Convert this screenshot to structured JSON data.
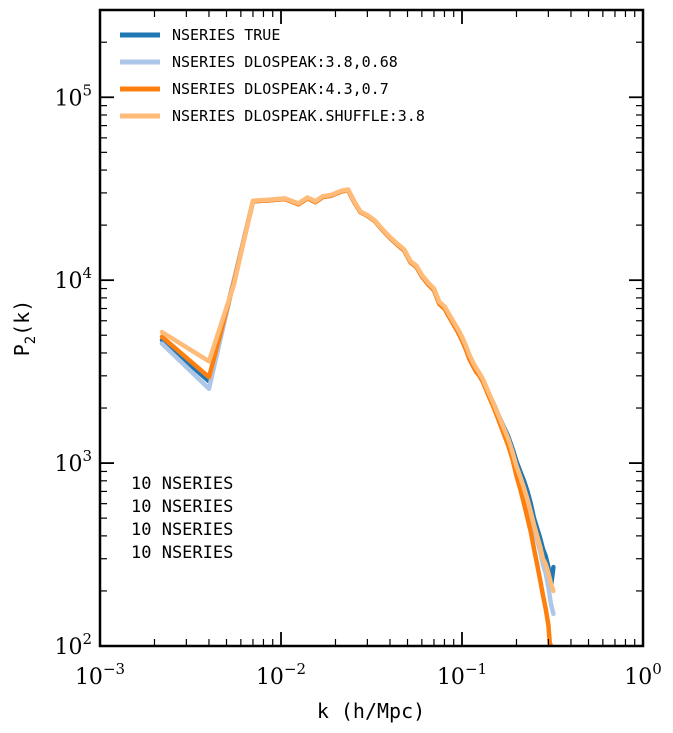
{
  "chart_data": {
    "type": "line",
    "title": "",
    "xlabel": "k (h/Mpc)",
    "ylabel": "P",
    "ylabel_sub": "2",
    "ylabel_tail": "(k)",
    "xscale": "log",
    "yscale": "log",
    "xlim": [
      0.001,
      1.0
    ],
    "ylim": [
      100,
      300000
    ],
    "x_ticks": [
      {
        "base": "10",
        "exp": "−3"
      },
      {
        "base": "10",
        "exp": "−2"
      },
      {
        "base": "10",
        "exp": "−1"
      },
      {
        "base": "10",
        "exp": "0"
      }
    ],
    "y_ticks": [
      {
        "base": "10",
        "exp": "2"
      },
      {
        "base": "10",
        "exp": "3"
      },
      {
        "base": "10",
        "exp": "4"
      },
      {
        "base": "10",
        "exp": "5"
      }
    ],
    "grid": false,
    "legend_position": "top-left",
    "series": [
      {
        "name": "NSERIES TRUE",
        "color": "#1f77b4",
        "x": [
          0.0022,
          0.004,
          0.0055,
          0.007,
          0.0085,
          0.0105,
          0.0125,
          0.014,
          0.0155,
          0.017,
          0.019,
          0.0215,
          0.0235,
          0.0255,
          0.0275,
          0.03,
          0.033,
          0.036,
          0.04,
          0.044,
          0.048,
          0.052,
          0.056,
          0.06,
          0.065,
          0.07,
          0.075,
          0.08,
          0.085,
          0.09,
          0.095,
          0.1,
          0.105,
          0.11,
          0.115,
          0.12,
          0.125,
          0.13,
          0.14,
          0.15,
          0.16,
          0.17,
          0.18,
          0.19,
          0.2,
          0.21,
          0.22,
          0.23,
          0.24,
          0.25,
          0.26,
          0.27,
          0.28,
          0.29,
          0.3,
          0.31,
          0.32
        ],
        "y": [
          4700,
          2800,
          10000,
          27000,
          27300,
          27800,
          26000,
          28000,
          26700,
          28500,
          29000,
          30500,
          31000,
          26500,
          23500,
          22500,
          21000,
          19000,
          17000,
          15600,
          14500,
          12500,
          11800,
          10500,
          9500,
          8800,
          7400,
          7000,
          6300,
          5700,
          5200,
          4700,
          4200,
          3700,
          3400,
          3150,
          3000,
          2800,
          2400,
          2100,
          1800,
          1580,
          1400,
          1200,
          1020,
          900,
          800,
          700,
          600,
          500,
          440,
          390,
          340,
          310,
          270,
          210,
          270
        ]
      },
      {
        "name": "NSERIES DLOSPEAK:3.8,0.68",
        "color": "#aec7e8",
        "x": [
          0.0022,
          0.004,
          0.0055,
          0.007,
          0.0085,
          0.0105,
          0.0125,
          0.014,
          0.0155,
          0.017,
          0.019,
          0.0215,
          0.0235,
          0.0255,
          0.0275,
          0.03,
          0.033,
          0.036,
          0.04,
          0.044,
          0.048,
          0.052,
          0.056,
          0.06,
          0.065,
          0.07,
          0.075,
          0.08,
          0.085,
          0.09,
          0.095,
          0.1,
          0.105,
          0.11,
          0.115,
          0.12,
          0.125,
          0.13,
          0.14,
          0.15,
          0.16,
          0.17,
          0.18,
          0.19,
          0.2,
          0.21,
          0.22,
          0.23,
          0.24,
          0.25,
          0.26,
          0.27,
          0.28,
          0.29,
          0.3,
          0.31,
          0.32
        ],
        "y": [
          4500,
          2550,
          10000,
          27000,
          27300,
          27800,
          26000,
          28000,
          26700,
          28500,
          29000,
          30500,
          31000,
          26500,
          23500,
          22500,
          21000,
          19000,
          17000,
          15600,
          14500,
          12500,
          11800,
          10500,
          9500,
          8800,
          7400,
          7000,
          6300,
          5700,
          5200,
          4700,
          4200,
          3700,
          3400,
          3150,
          3000,
          2800,
          2400,
          2050,
          1750,
          1520,
          1330,
          1130,
          950,
          830,
          730,
          630,
          530,
          440,
          380,
          330,
          280,
          250,
          210,
          170,
          150
        ]
      },
      {
        "name": "NSERIES DLOSPEAK:4.3,0.7",
        "color": "#ff7f0e",
        "x": [
          0.0022,
          0.004,
          0.0055,
          0.007,
          0.0085,
          0.0105,
          0.0125,
          0.014,
          0.0155,
          0.017,
          0.019,
          0.0215,
          0.0235,
          0.0255,
          0.0275,
          0.03,
          0.033,
          0.036,
          0.04,
          0.044,
          0.048,
          0.052,
          0.056,
          0.06,
          0.065,
          0.07,
          0.075,
          0.08,
          0.085,
          0.09,
          0.095,
          0.1,
          0.105,
          0.11,
          0.115,
          0.12,
          0.125,
          0.13,
          0.14,
          0.15,
          0.16,
          0.17,
          0.18,
          0.19,
          0.2,
          0.21,
          0.22,
          0.23,
          0.24,
          0.25,
          0.26,
          0.27,
          0.28,
          0.29,
          0.3,
          0.305,
          0.31
        ],
        "y": [
          4900,
          2950,
          9800,
          27000,
          27300,
          27800,
          26000,
          28000,
          26700,
          28500,
          29000,
          30500,
          31000,
          26500,
          23500,
          22500,
          21000,
          19000,
          17000,
          15600,
          14500,
          12500,
          11800,
          10500,
          9500,
          8800,
          7400,
          7000,
          6300,
          5700,
          5200,
          4700,
          4200,
          3700,
          3400,
          3150,
          3000,
          2800,
          2350,
          2000,
          1700,
          1450,
          1250,
          1050,
          850,
          720,
          600,
          500,
          420,
          340,
          280,
          230,
          190,
          160,
          130,
          105,
          100
        ]
      },
      {
        "name": "NSERIES DLOSPEAK.SHUFFLE:3.8",
        "color": "#ffbb78",
        "x": [
          0.0022,
          0.004,
          0.0055,
          0.007,
          0.0085,
          0.0105,
          0.0125,
          0.014,
          0.0155,
          0.017,
          0.019,
          0.0215,
          0.0235,
          0.0255,
          0.0275,
          0.03,
          0.033,
          0.036,
          0.04,
          0.044,
          0.048,
          0.052,
          0.056,
          0.06,
          0.065,
          0.07,
          0.075,
          0.08,
          0.085,
          0.09,
          0.095,
          0.1,
          0.105,
          0.11,
          0.115,
          0.12,
          0.125,
          0.13,
          0.14,
          0.15,
          0.16,
          0.17,
          0.18,
          0.19,
          0.2,
          0.21,
          0.22,
          0.23,
          0.24,
          0.25,
          0.26,
          0.27,
          0.28,
          0.29,
          0.3,
          0.31,
          0.32
        ],
        "y": [
          5200,
          3600,
          9500,
          27200,
          27500,
          28000,
          26300,
          28300,
          27000,
          28800,
          29300,
          30800,
          31300,
          26800,
          23700,
          22700,
          21200,
          19200,
          17200,
          15800,
          14700,
          12700,
          12000,
          10700,
          9700,
          9000,
          7600,
          7200,
          6500,
          5900,
          5400,
          4900,
          4400,
          3900,
          3550,
          3300,
          3100,
          2900,
          2450,
          2100,
          1800,
          1560,
          1360,
          1150,
          960,
          840,
          730,
          630,
          540,
          460,
          400,
          350,
          300,
          280,
          250,
          220,
          200
        ]
      }
    ],
    "annotations": [
      "10 NSERIES",
      "10 NSERIES",
      "10 NSERIES",
      "10 NSERIES"
    ]
  }
}
